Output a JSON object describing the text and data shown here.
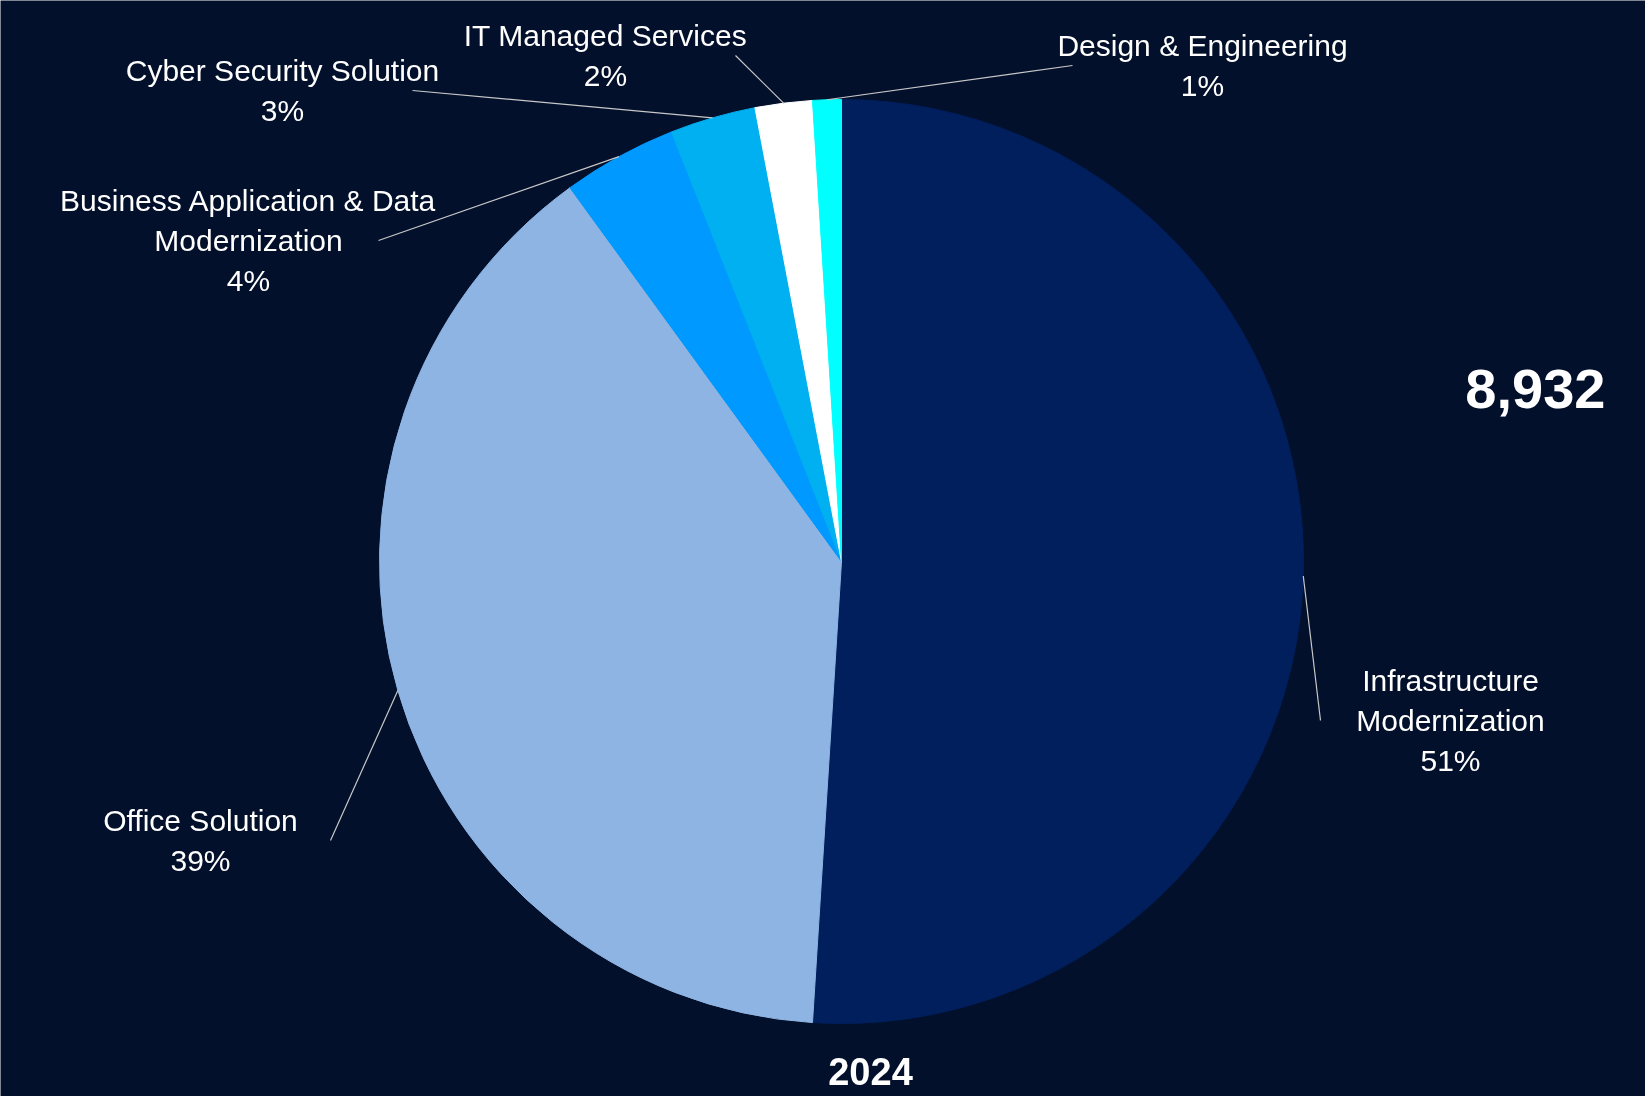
{
  "chart_data": {
    "type": "pie",
    "categories": [
      "Infrastructure Modernization",
      "Office Solution",
      "Business Application & Data Modernization",
      "Cyber Security Solution",
      "IT Managed Services",
      "Design & Engineering"
    ],
    "values": [
      51,
      39,
      4,
      3,
      2,
      1
    ],
    "colors": [
      "#001f5c",
      "#8eb4e3",
      "#0099ff",
      "#00b0f0",
      "#ffffff",
      "#00ffff"
    ],
    "value_labels": [
      "51%",
      "39%",
      "4%",
      "3%",
      "2%",
      "1%"
    ],
    "annotations": [
      "8,932",
      "2024"
    ]
  }
}
